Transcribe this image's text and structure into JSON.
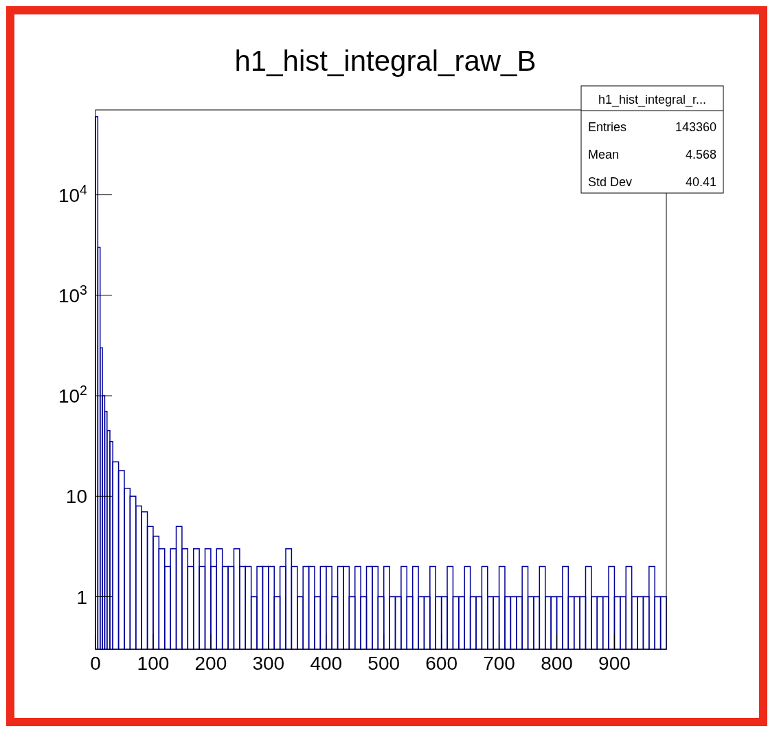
{
  "chart_data": {
    "type": "histogram",
    "title": "h1_hist_integral_raw_B",
    "bins": [
      0,
      4,
      8,
      12,
      16,
      20,
      25,
      30,
      40,
      50,
      60,
      70,
      80,
      90,
      100,
      110,
      120,
      130,
      140,
      150,
      160,
      170,
      180,
      190,
      200,
      210,
      220,
      230,
      240,
      250,
      260,
      270,
      280,
      290,
      300,
      310,
      320,
      330,
      340,
      350,
      360,
      370,
      380,
      390,
      400,
      410,
      420,
      430,
      440,
      450,
      460,
      470,
      480,
      490,
      500,
      510,
      520,
      530,
      540,
      550,
      560,
      570,
      580,
      590,
      600,
      610,
      620,
      630,
      640,
      650,
      660,
      670,
      680,
      690,
      700,
      710,
      720,
      730,
      740,
      750,
      760,
      770,
      780,
      790,
      800,
      810,
      820,
      830,
      840,
      850,
      860,
      870,
      880,
      890,
      900,
      910,
      920,
      930,
      940,
      950,
      960,
      970,
      980,
      990
    ],
    "values": [
      60000,
      3000,
      300,
      100,
      70,
      45,
      35,
      22,
      18,
      12,
      10,
      8,
      7,
      5,
      4,
      3,
      2,
      3,
      5,
      3,
      2,
      3,
      2,
      3,
      2,
      3,
      2,
      2,
      3,
      2,
      2,
      1,
      2,
      2,
      2,
      1,
      2,
      3,
      2,
      1,
      2,
      2,
      1,
      2,
      2,
      1,
      2,
      2,
      1,
      2,
      1,
      2,
      2,
      1,
      2,
      1,
      1,
      2,
      1,
      2,
      1,
      1,
      2,
      1,
      1,
      2,
      1,
      1,
      2,
      1,
      1,
      2,
      1,
      1,
      2,
      1,
      1,
      1,
      2,
      1,
      1,
      2,
      1,
      1,
      1,
      2,
      1,
      1,
      1,
      2,
      1,
      1,
      1,
      2,
      1,
      1,
      2,
      1,
      1,
      1,
      2,
      1,
      1
    ],
    "color": "#000099",
    "log": "y",
    "xlim": [
      0,
      990
    ],
    "ylim": [
      0.3,
      70000
    ],
    "xticks": [
      0,
      100,
      200,
      300,
      400,
      500,
      600,
      700,
      800,
      900
    ],
    "yticks": [
      1,
      10,
      {
        "value": 100,
        "label": "10$^{2}$"
      },
      {
        "value": 1000,
        "label": "10$^{3}$"
      },
      {
        "value": 10000,
        "label": "10$^{4}$"
      }
    ],
    "grid": false,
    "annotations": [
      "h1_hist_integral_r...",
      "Entries 143360",
      "Mean 4.568",
      "Std Dev 40.41"
    ]
  }
}
